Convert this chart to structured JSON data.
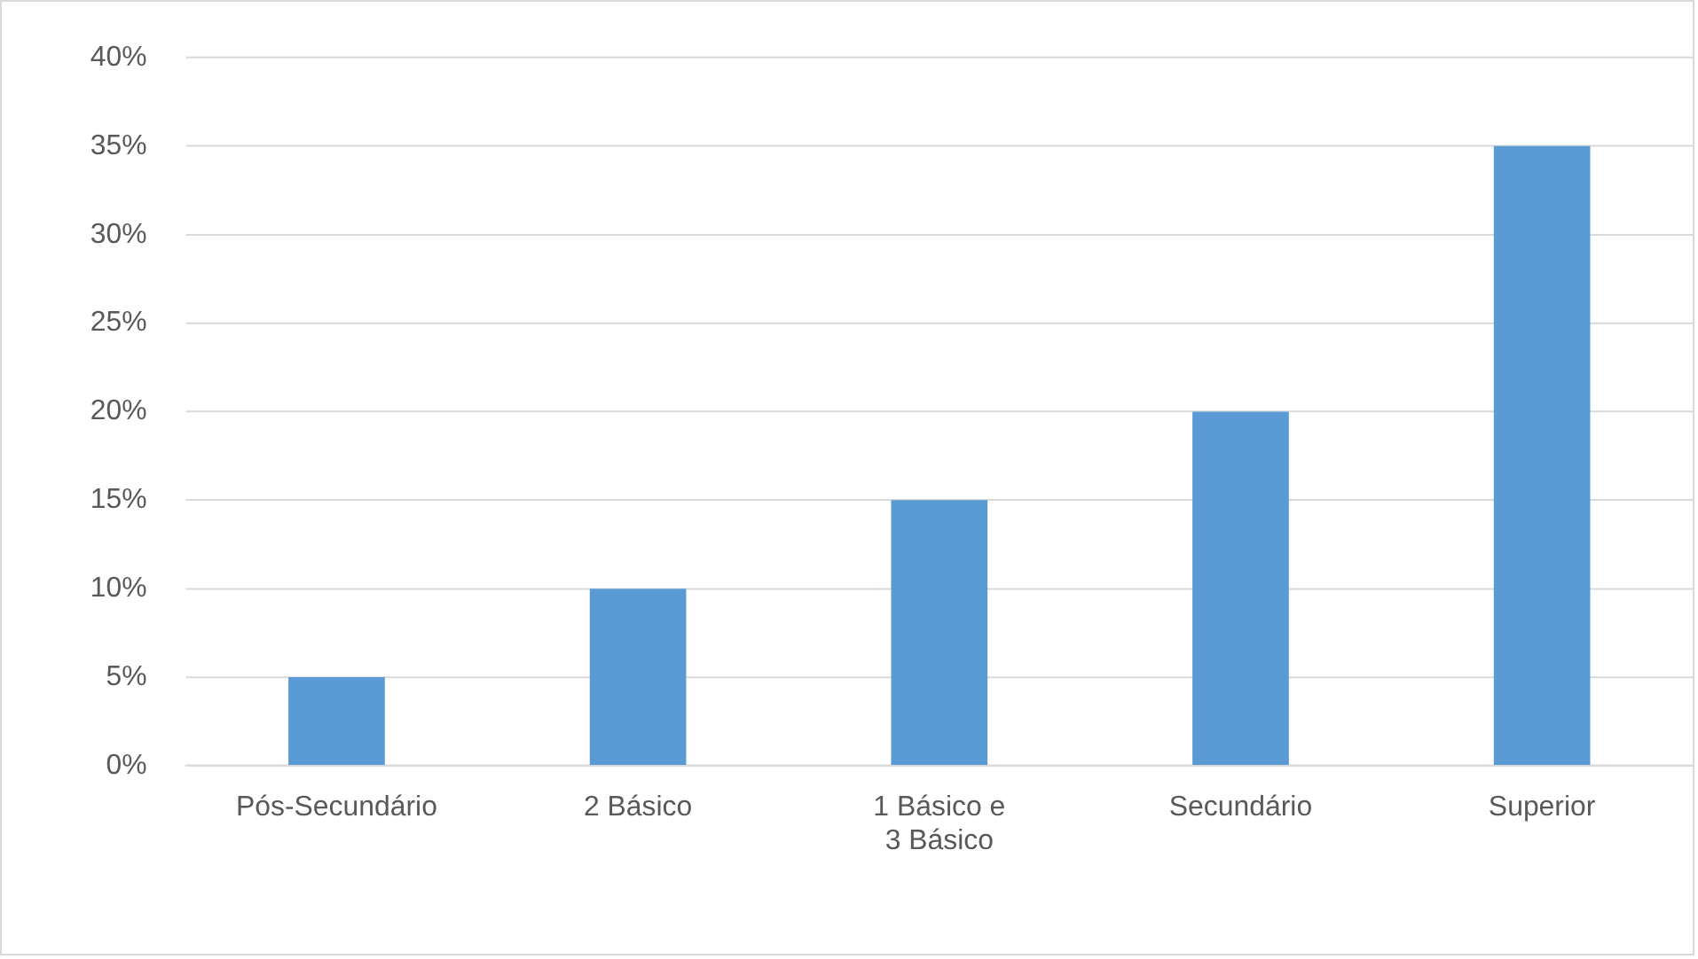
{
  "chart_data": {
    "type": "bar",
    "categories": [
      "Pós-Secundário",
      "2 Básico",
      "1 Básico e 3 Básico",
      "Secundário",
      "Superior"
    ],
    "values": [
      5,
      10,
      15,
      20,
      35
    ],
    "color": "#5b9bd5",
    "ylim": [
      0,
      40
    ],
    "yticks": [
      {
        "value": 0,
        "label": "0%"
      },
      {
        "value": 5,
        "label": "5%"
      },
      {
        "value": 10,
        "label": "10%"
      },
      {
        "value": 15,
        "label": "15%"
      },
      {
        "value": 20,
        "label": "20%"
      },
      {
        "value": 25,
        "label": "25%"
      },
      {
        "value": 30,
        "label": "30%"
      },
      {
        "value": 35,
        "label": "35%"
      },
      {
        "value": 40,
        "label": "40%"
      }
    ],
    "grid": "y",
    "legend": false
  }
}
